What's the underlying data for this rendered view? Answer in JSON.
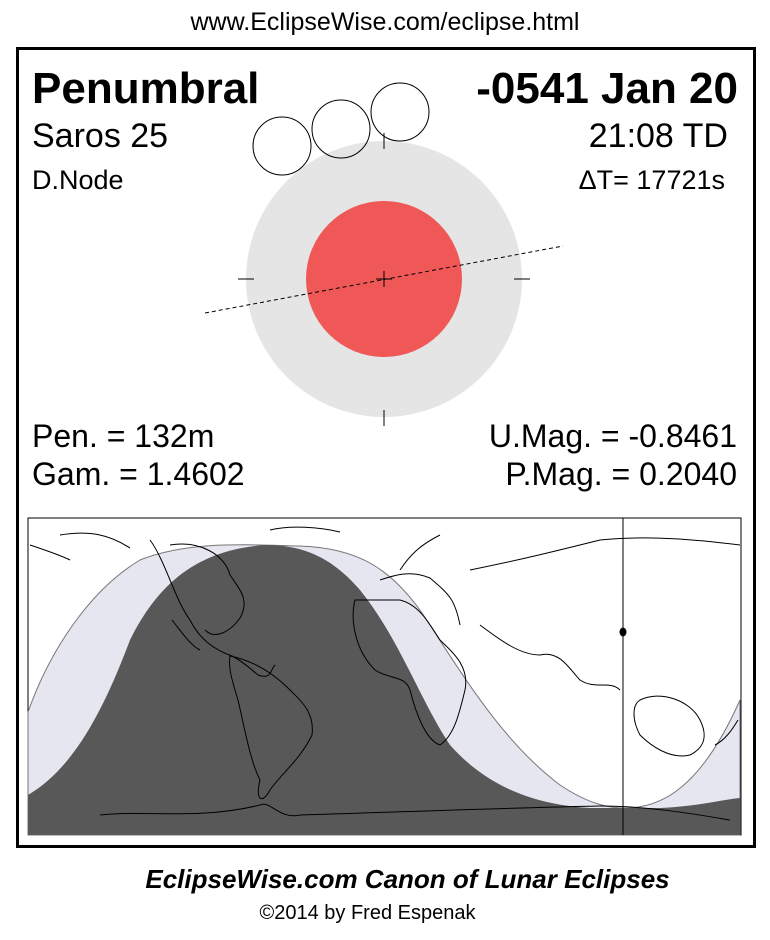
{
  "source_url": "www.EclipseWise.com/eclipse.html",
  "header": {
    "eclipse_type": "Penumbral",
    "date": "-0541 Jan 20",
    "saros": "Saros  25",
    "time": "21:08 TD",
    "node": "D.Node",
    "delta_t": "ΔT=  17721s"
  },
  "stats": {
    "pen_duration": "Pen. = 132m",
    "gamma": "Gam. = 1.4602",
    "umbral_mag": "U.Mag. = -0.8461",
    "penumbral_mag": "P.Mag. = 0.2040"
  },
  "colors": {
    "penumbra": "#e5e5e5",
    "umbra": "#f05858",
    "map_night": "#585858",
    "map_penumbral_zone": "#e6e6f0"
  },
  "footer": {
    "title": "EclipseWise.com Canon of Lunar Eclipses",
    "copyright": "©2014 by Fred Espenak"
  }
}
